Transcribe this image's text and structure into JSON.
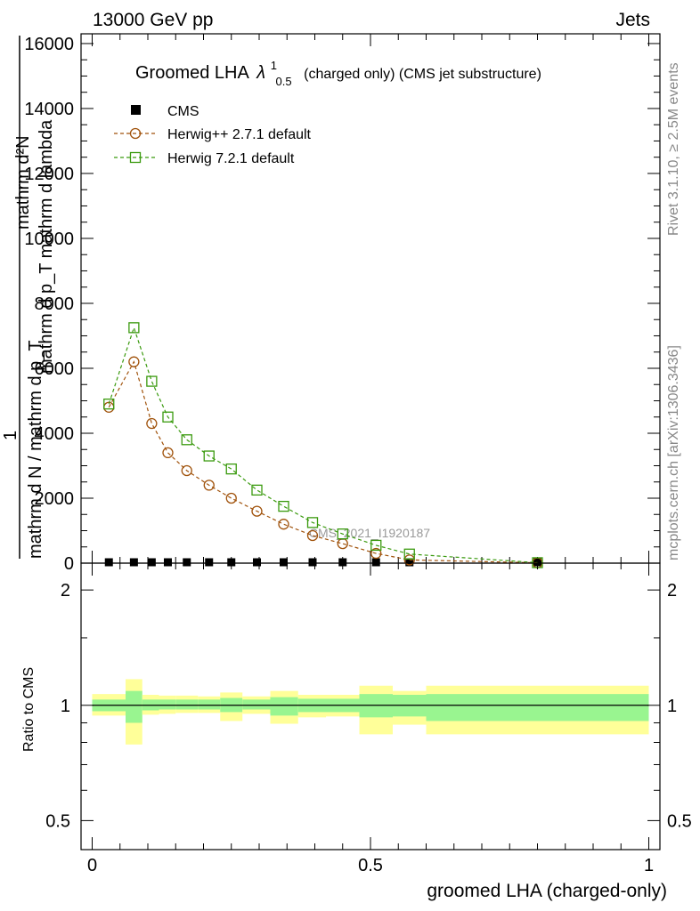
{
  "header": {
    "left": "13000 GeV pp",
    "right": "Jets"
  },
  "side_labels": {
    "rivet": "Rivet 3.1.10, ≥ 2.5M events",
    "mcplots": "mcplots.cern.ch [arXiv:1306.3436]"
  },
  "watermark": "CMS_2021_I1920187",
  "main_ylabel": {
    "numerator_top": "mathrm d²N",
    "numerator_sub": "mathrm d p_T mathrm d lambda",
    "one": "1",
    "denominator": "mathrm d N / mathrm d p_T"
  },
  "ratio_ylabel": "Ratio to CMS",
  "xlabel": "groomed LHA (charged-only)",
  "colors": {
    "cms": "#000000",
    "herwigpp": "#a0520b",
    "herwig7": "#3a9a0e",
    "band_inner": "#99f590",
    "band_outer": "#ffff99"
  },
  "chart_data": [
    {
      "type": "line",
      "title": "Groomed LHA λ¹₀.₅ (charged only) (CMS jet substructure)",
      "title_main": "Groomed LHA",
      "title_symbol": "λ",
      "title_sup": "1",
      "title_sub": "0.5",
      "title_rest": "(charged only) (CMS jet substructure)",
      "ylim": [
        0,
        16300
      ],
      "xlim": [
        -0.02,
        1.02
      ],
      "y_ticks": [
        0,
        2000,
        4000,
        6000,
        8000,
        10000,
        12000,
        14000,
        16000
      ],
      "y_tick_labels": [
        "0",
        "2000",
        "4000",
        "6000",
        "8000",
        "10000",
        "12000",
        "14000",
        "16000"
      ],
      "legend_position": "top-left",
      "series": [
        {
          "name": "CMS",
          "marker": "filled-square",
          "x": [
            0.03,
            0.075,
            0.107,
            0.136,
            0.17,
            0.21,
            0.25,
            0.296,
            0.344,
            0.396,
            0.45,
            0.51,
            0.57,
            0.8
          ],
          "y": [
            10,
            10,
            10,
            10,
            10,
            10,
            10,
            10,
            10,
            10,
            10,
            10,
            10,
            10
          ]
        },
        {
          "name": "Herwig++ 2.7.1 default",
          "marker": "open-circle",
          "x": [
            0.03,
            0.075,
            0.107,
            0.136,
            0.17,
            0.21,
            0.25,
            0.296,
            0.344,
            0.396,
            0.45,
            0.51,
            0.57,
            0.8
          ],
          "y": [
            4800,
            6200,
            4300,
            3400,
            2850,
            2400,
            2000,
            1600,
            1200,
            850,
            600,
            300,
            100,
            10
          ]
        },
        {
          "name": "Herwig 7.2.1 default",
          "marker": "open-square",
          "x": [
            0.03,
            0.075,
            0.107,
            0.136,
            0.17,
            0.21,
            0.25,
            0.296,
            0.344,
            0.396,
            0.45,
            0.51,
            0.57,
            0.8
          ],
          "y": [
            4900,
            7250,
            5600,
            4500,
            3800,
            3300,
            2900,
            2250,
            1750,
            1250,
            900,
            550,
            280,
            15
          ]
        }
      ]
    },
    {
      "type": "area",
      "title": "",
      "ylabel": "Ratio to CMS",
      "xlabel": "groomed LHA (charged-only)",
      "ylim": [
        0.42,
        2.35
      ],
      "y_scale": "log",
      "y_ticks": [
        0.5,
        1,
        2
      ],
      "y_tick_labels": [
        "0.5",
        "1",
        "2"
      ],
      "x_ticks": [
        0,
        0.5,
        1
      ],
      "x_tick_labels": [
        "0",
        "0.5",
        "1"
      ],
      "reference_line": 1,
      "bins": [
        {
          "x0": 0.0,
          "x1": 0.06,
          "inner": [
            0.965,
            1.035
          ],
          "outer": [
            0.94,
            1.07
          ]
        },
        {
          "x0": 0.06,
          "x1": 0.09,
          "inner": [
            0.9,
            1.09
          ],
          "outer": [
            0.79,
            1.17
          ]
        },
        {
          "x0": 0.09,
          "x1": 0.12,
          "inner": [
            0.97,
            1.035
          ],
          "outer": [
            0.945,
            1.065
          ]
        },
        {
          "x0": 0.12,
          "x1": 0.15,
          "inner": [
            0.975,
            1.035
          ],
          "outer": [
            0.95,
            1.06
          ]
        },
        {
          "x0": 0.15,
          "x1": 0.19,
          "inner": [
            0.975,
            1.035
          ],
          "outer": [
            0.955,
            1.06
          ]
        },
        {
          "x0": 0.19,
          "x1": 0.23,
          "inner": [
            0.975,
            1.035
          ],
          "outer": [
            0.955,
            1.055
          ]
        },
        {
          "x0": 0.23,
          "x1": 0.27,
          "inner": [
            0.96,
            1.045
          ],
          "outer": [
            0.91,
            1.08
          ]
        },
        {
          "x0": 0.27,
          "x1": 0.32,
          "inner": [
            0.975,
            1.035
          ],
          "outer": [
            0.95,
            1.055
          ]
        },
        {
          "x0": 0.32,
          "x1": 0.37,
          "inner": [
            0.94,
            1.05
          ],
          "outer": [
            0.895,
            1.09
          ]
        },
        {
          "x0": 0.37,
          "x1": 0.42,
          "inner": [
            0.96,
            1.04
          ],
          "outer": [
            0.93,
            1.065
          ]
        },
        {
          "x0": 0.42,
          "x1": 0.48,
          "inner": [
            0.96,
            1.04
          ],
          "outer": [
            0.935,
            1.065
          ]
        },
        {
          "x0": 0.48,
          "x1": 0.54,
          "inner": [
            0.93,
            1.07
          ],
          "outer": [
            0.84,
            1.125
          ]
        },
        {
          "x0": 0.54,
          "x1": 0.6,
          "inner": [
            0.935,
            1.065
          ],
          "outer": [
            0.89,
            1.09
          ]
        },
        {
          "x0": 0.6,
          "x1": 1.0,
          "inner": [
            0.91,
            1.07
          ],
          "outer": [
            0.84,
            1.125
          ]
        }
      ]
    }
  ]
}
